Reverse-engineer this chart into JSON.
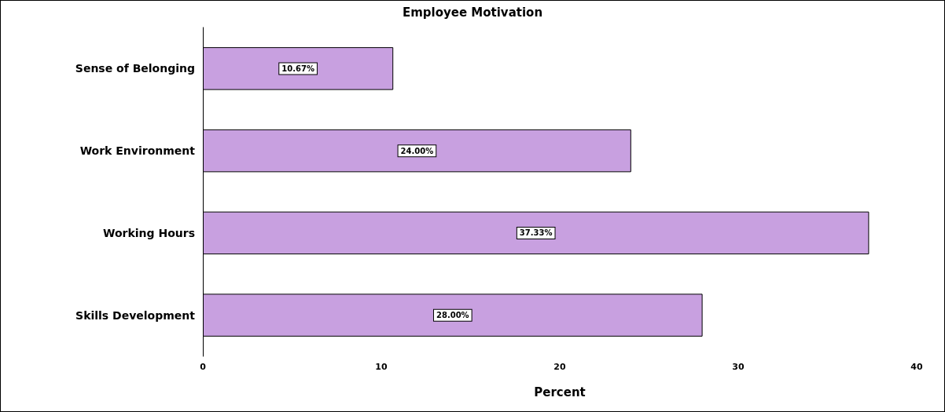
{
  "chart_data": {
    "type": "bar",
    "orientation": "horizontal",
    "title": "Employee Motivation",
    "xlabel": "Percent",
    "categories": [
      "Sense of Belonging",
      "Work Environment",
      "Working Hours",
      "Skills Development"
    ],
    "values": [
      10.67,
      24.0,
      37.33,
      28.0
    ],
    "value_labels": [
      "10.67%",
      "24.00%",
      "37.33%",
      "28.00%"
    ],
    "color": "#c8a0e0",
    "xlim": [
      0,
      40
    ],
    "xticks": [
      0,
      10,
      20,
      30,
      40
    ]
  }
}
